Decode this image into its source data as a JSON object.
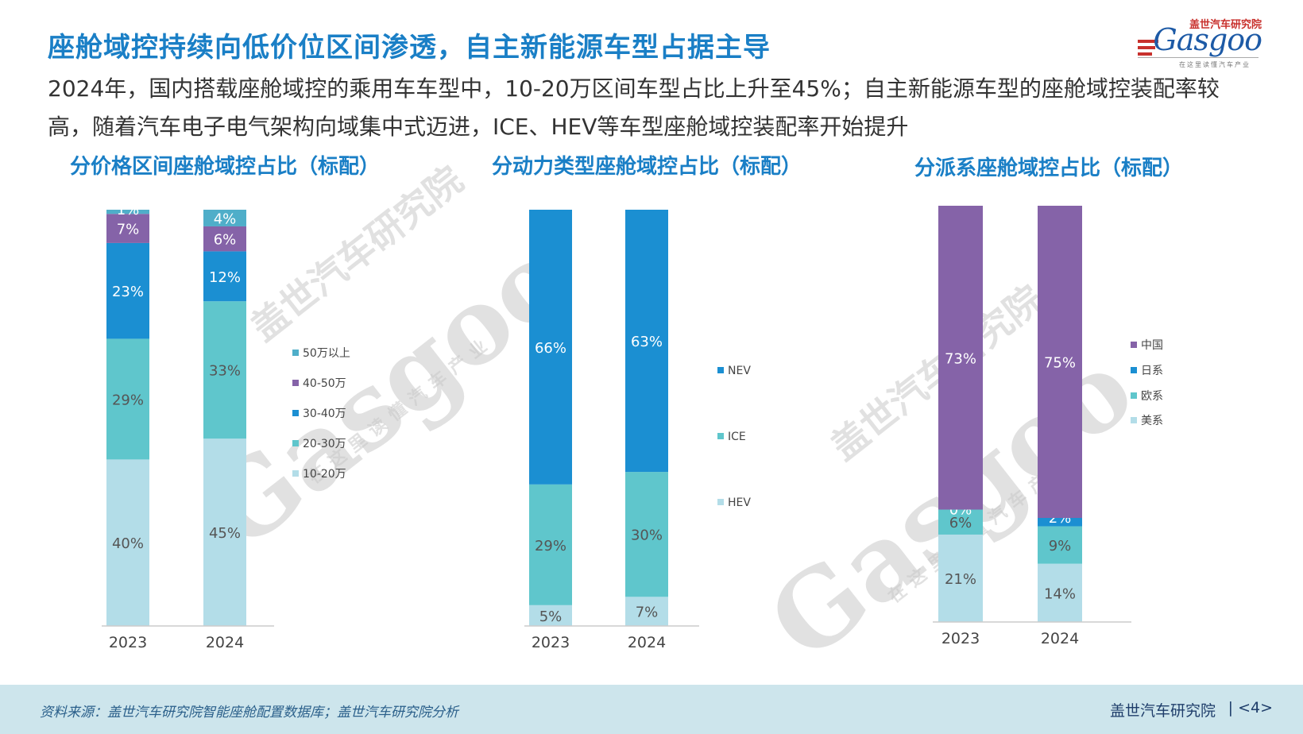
{
  "header": {
    "title": "座舱域控持续向低价位区间渗透，自主新能源车型占据主导",
    "subtitle": "2024年，国内搭载座舱域控的乘用车车型中，10-20万区间车型占比上升至45%；自主新能源车型的座舱域控装配率较高，随着汽车电子电气架构向域集中式迈进，ICE、HEV等车型座舱域控装配率开始提升"
  },
  "logo": {
    "cn": "盖世汽车研究院",
    "en": "Gasgoo",
    "tagline": "在这里读懂汽车产业"
  },
  "watermark": {
    "cn": "盖世汽车研究院",
    "en": "Gasgoo",
    "tagline": "在这里读懂汽车产业"
  },
  "chart_data": [
    {
      "type": "bar",
      "stacked": true,
      "title": "分价格区间座舱域控占比（标配）",
      "categories": [
        "2023",
        "2024"
      ],
      "ylim": [
        0,
        100
      ],
      "legend_position": "right",
      "series": [
        {
          "name": "10-20万",
          "color": "#b3dde8",
          "values": [
            40,
            45
          ],
          "labels": [
            "40%",
            "45%"
          ]
        },
        {
          "name": "20-30万",
          "color": "#5fc6cc",
          "values": [
            29,
            33
          ],
          "labels": [
            "29%",
            "33%"
          ]
        },
        {
          "name": "30-40万",
          "color": "#1b8fd2",
          "values": [
            23,
            12
          ],
          "labels": [
            "23%",
            "12%"
          ]
        },
        {
          "name": "40-50万",
          "color": "#8563a8",
          "values": [
            7,
            6
          ],
          "labels": [
            "7%",
            "6%"
          ]
        },
        {
          "name": "50万以上",
          "color": "#4faec9",
          "values": [
            1,
            4
          ],
          "labels": [
            "1%",
            "4%"
          ]
        }
      ]
    },
    {
      "type": "bar",
      "stacked": true,
      "title": "分动力类型座舱域控占比（标配）",
      "categories": [
        "2023",
        "2024"
      ],
      "ylim": [
        0,
        100
      ],
      "legend_position": "right",
      "series": [
        {
          "name": "HEV",
          "color": "#b3dde8",
          "values": [
            5,
            7
          ],
          "labels": [
            "5%",
            "7%"
          ]
        },
        {
          "name": "ICE",
          "color": "#5fc6cc",
          "values": [
            29,
            30
          ],
          "labels": [
            "29%",
            "30%"
          ]
        },
        {
          "name": "NEV",
          "color": "#1b8fd2",
          "values": [
            66,
            63
          ],
          "labels": [
            "66%",
            "63%"
          ]
        }
      ]
    },
    {
      "type": "bar",
      "stacked": true,
      "title": "分派系座舱域控占比（标配）",
      "categories": [
        "2023",
        "2024"
      ],
      "ylim": [
        0,
        100
      ],
      "legend_position": "right",
      "series": [
        {
          "name": "美系",
          "color": "#b3dde8",
          "values": [
            21,
            14
          ],
          "labels": [
            "21%",
            "14%"
          ]
        },
        {
          "name": "欧系",
          "color": "#5fc6cc",
          "values": [
            6,
            9
          ],
          "labels": [
            "6%",
            "9%"
          ]
        },
        {
          "name": "日系",
          "color": "#1b8fd2",
          "values": [
            0,
            2
          ],
          "labels": [
            "0%",
            "2%"
          ]
        },
        {
          "name": "中国",
          "color": "#8563a8",
          "values": [
            73,
            75
          ],
          "labels": [
            "73%",
            "75%"
          ]
        }
      ]
    }
  ],
  "footer": {
    "source": "资料来源：盖世汽车研究院智能座舱配置数据库；盖世汽车研究院分析",
    "brand": "盖世汽车研究院",
    "page": "| <4>"
  }
}
